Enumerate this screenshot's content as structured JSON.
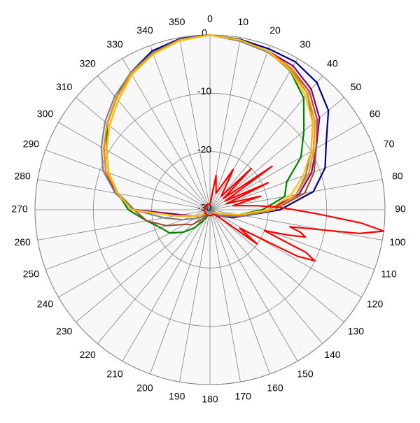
{
  "chart_data": {
    "type": "polar",
    "theta": [
      0,
      10,
      20,
      30,
      40,
      50,
      60,
      70,
      80,
      90,
      100,
      110,
      120,
      130,
      140,
      150,
      160,
      170,
      180,
      190,
      200,
      210,
      220,
      230,
      240,
      250,
      260,
      270,
      280,
      290,
      300,
      310,
      320,
      330,
      340,
      350
    ],
    "xticks": [
      0,
      10,
      20,
      30,
      40,
      50,
      60,
      70,
      80,
      90,
      100,
      110,
      120,
      130,
      140,
      150,
      160,
      170,
      180,
      190,
      200,
      210,
      220,
      230,
      240,
      250,
      260,
      270,
      280,
      290,
      300,
      310,
      320,
      330,
      340,
      350
    ],
    "ylim": [
      -30,
      0
    ],
    "yticks": [
      -30,
      -20,
      -10,
      0
    ],
    "grid": true,
    "series": [
      {
        "color": "#000080",
        "values": [
          0,
          -0.3,
          -0.6,
          -0.7,
          -1.5,
          -3.5,
          -7,
          -9,
          -12,
          -18,
          -24,
          -27,
          -28,
          -28,
          -29,
          -29,
          -29,
          -29,
          -29,
          -29,
          -29,
          -29,
          -29,
          -29,
          -28,
          -27,
          -24,
          -17,
          -14,
          -11,
          -9,
          -7,
          -5,
          -2.8,
          -1,
          -0.2
        ]
      },
      {
        "color": "#800080",
        "values": [
          0,
          -0.5,
          -1,
          -1.5,
          -3,
          -5.5,
          -9,
          -11.5,
          -14.5,
          -20,
          -24,
          -26,
          -28,
          -29,
          -29,
          -29,
          -29,
          -29,
          -29,
          -29,
          -29,
          -29,
          -29,
          -29,
          -28,
          -27,
          -25,
          -17,
          -13.5,
          -11,
          -9,
          -7,
          -5,
          -3,
          -1.3,
          -0.3
        ]
      },
      {
        "color": "#008000",
        "values": [
          0,
          -0.5,
          -1,
          -2.5,
          -5,
          -9,
          -12,
          -16,
          -17,
          -21,
          -25,
          -28,
          -29,
          -29,
          -29,
          -29,
          -29,
          -29,
          -29,
          -29,
          -29,
          -28,
          -26,
          -24,
          -22,
          -21,
          -19,
          -16,
          -14,
          -11.5,
          -9.5,
          -7,
          -5,
          -3,
          -1.5,
          -0.5
        ]
      },
      {
        "color": "#a0522d",
        "values": [
          0,
          -0.5,
          -1,
          -2,
          -3.5,
          -6,
          -9,
          -11,
          -13.5,
          -19,
          -24,
          -27,
          -28,
          -29,
          -29,
          -29,
          -29,
          -29,
          -29,
          -29,
          -29,
          -29,
          -28,
          -26,
          -25,
          -22,
          -19,
          -17,
          -14,
          -11.5,
          -9.5,
          -7.5,
          -5.5,
          -3.2,
          -1.5,
          -0.4
        ]
      },
      {
        "color": "#808080",
        "values": [
          0,
          -0.6,
          -1.2,
          -2.2,
          -4,
          -7,
          -10,
          -12.5,
          -15,
          -19,
          -24,
          -27,
          -28,
          -29,
          -29,
          -29,
          -29,
          -29,
          -29,
          -29,
          -29,
          -29,
          -29,
          -28,
          -27,
          -25,
          -22,
          -17,
          -13.5,
          -10.5,
          -8.5,
          -6.5,
          -4.6,
          -2.8,
          -1.3,
          -0.3
        ]
      },
      {
        "color": "#ff8c00",
        "values": [
          0,
          -0.4,
          -1,
          -2,
          -4,
          -6.5,
          -9.5,
          -12,
          -15,
          -19,
          -25,
          -28,
          -29,
          -29,
          -29,
          -29,
          -29,
          -29,
          -29,
          -29,
          -29,
          -29,
          -29,
          -29,
          -28,
          -27,
          -24,
          -16.5,
          -14,
          -11,
          -9,
          -7,
          -5,
          -3,
          -1.5,
          -0.4
        ]
      },
      {
        "color": "#ffc000",
        "values": [
          0,
          -0.4,
          -1,
          -2.4,
          -4.5,
          -7,
          -10,
          -13,
          -16,
          -20,
          -25,
          -28,
          -29,
          -29,
          -29,
          -29,
          -29,
          -29,
          -29,
          -29,
          -29,
          -29,
          -29,
          -29,
          -28,
          -27,
          -24,
          -16.5,
          -14,
          -11.5,
          -9.5,
          -7.5,
          -5.5,
          -3.2,
          -1.6,
          -0.5
        ]
      },
      {
        "color": "#ff0000",
        "theta": [
          0,
          10,
          20,
          30,
          40,
          45,
          50,
          55,
          60,
          65,
          70,
          75,
          80,
          85,
          88,
          92,
          95,
          97,
          99,
          102,
          104,
          106,
          108,
          111,
          114,
          116,
          118,
          122,
          126,
          130,
          140,
          160,
          180,
          200,
          220,
          240,
          260,
          280,
          300,
          320,
          340
        ],
        "values": [
          -29,
          -24,
          -27,
          -22,
          -27,
          -20,
          -27,
          -17,
          -27,
          -19,
          -27,
          -21,
          -26,
          -22,
          -18,
          -12,
          -4,
          0,
          -4,
          -16,
          -14,
          -13,
          -16,
          -20,
          -12,
          -10,
          -13,
          -24,
          -20,
          -28,
          -29,
          -29,
          -29,
          -29,
          -29,
          -29,
          -29,
          -29,
          -29,
          -29,
          -29
        ]
      }
    ]
  }
}
